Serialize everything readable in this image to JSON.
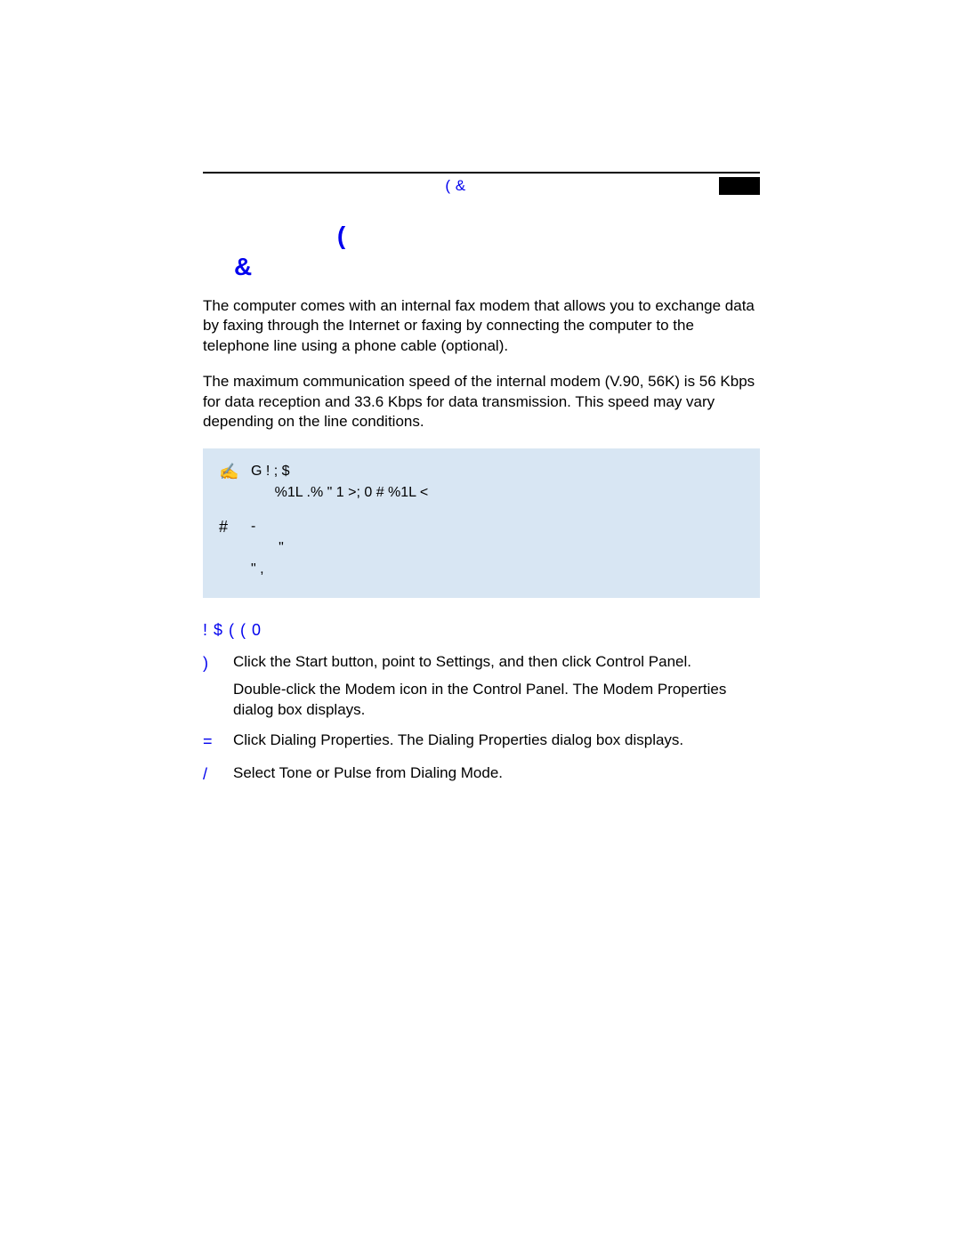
{
  "colors": {
    "accent": "#0000ee",
    "note_bg": "#d8e6f3",
    "header_block": "#000000",
    "text": "#000000",
    "background": "#ffffff"
  },
  "header": {
    "text": "(          &"
  },
  "section_title_line1": "(",
  "section_title_line2": "&",
  "paragraphs": {
    "p1": "The computer comes with an internal fax modem that allows you to exchange data by faxing through the Internet or faxing by connecting the computer to the telephone line using a phone cable (optional).",
    "p2": "The maximum communication speed of the internal modem (V.90, 56K) is 56 Kbps for data reception and 33.6 Kbps for data transmission. This speed may vary depending on the line conditions."
  },
  "note": {
    "icon": "✍",
    "line1": "G !        ;                                                     $",
    "line2": "%1L .%  \"   1    >;    0  #              %1L            <",
    "row2_icon": "#",
    "row2_line1": "                                                                    -",
    "row2_line2": "\"",
    "row2_line3": "                                                                              \"       ,"
  },
  "sub_title": "!    $    (        (  0",
  "steps": [
    {
      "num": ")",
      "body": [
        "Click the Start button,  point to Settings, and then click Control Panel.",
        "Double-click the Modem icon in the Control Panel. The Modem Properties dialog box displays."
      ]
    },
    {
      "num": "=",
      "body": [
        "Click Dialing Properties. The Dialing Properties dialog box displays."
      ]
    },
    {
      "num": "/",
      "body": [
        "Select Tone or Pulse from Dialing Mode."
      ]
    }
  ]
}
